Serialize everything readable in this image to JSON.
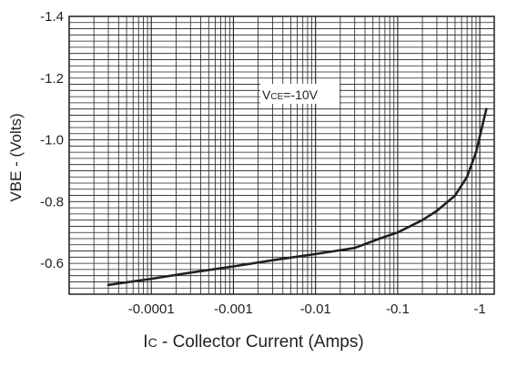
{
  "chart_data": {
    "type": "line",
    "x_scale": "log",
    "x_direction": "reversed",
    "y_direction": "reversed",
    "xlim": [
      -1e-05,
      -1.5
    ],
    "ylim": [
      -0.5,
      -1.4
    ],
    "x_ticks": [
      {
        "value": -0.0001,
        "label": "-0.0001"
      },
      {
        "value": -0.001,
        "label": "-0.001"
      },
      {
        "value": -0.01,
        "label": "-0.01"
      },
      {
        "value": -0.1,
        "label": "-0.1"
      },
      {
        "value": -1,
        "label": "-1"
      }
    ],
    "y_ticks": [
      {
        "value": -0.6,
        "label": "-0.6"
      },
      {
        "value": -0.8,
        "label": "-0.8"
      },
      {
        "value": -1.0,
        "label": "-1.0"
      },
      {
        "value": -1.2,
        "label": "-1.2"
      },
      {
        "value": -1.4,
        "label": "-1.4"
      }
    ],
    "grid": true,
    "xlabel_main": "I",
    "xlabel_sub": "C",
    "xlabel_rest": " - Collector Current (Amps)",
    "ylabel": "VBE - (Volts)",
    "annotation": {
      "main1": "V",
      "sub": "CE",
      "main2": "=-10V"
    },
    "series": [
      {
        "x": [
          -3e-05,
          -0.0001,
          -0.0003,
          -0.001,
          -0.003,
          -0.01,
          -0.03,
          -0.06,
          -0.1,
          -0.2,
          -0.3,
          -0.5,
          -0.7,
          -0.9,
          -1.2
        ],
        "y": [
          -0.53,
          -0.55,
          -0.57,
          -0.59,
          -0.61,
          -0.63,
          -0.65,
          -0.68,
          -0.7,
          -0.74,
          -0.77,
          -0.82,
          -0.88,
          -0.96,
          -1.1
        ]
      }
    ]
  }
}
